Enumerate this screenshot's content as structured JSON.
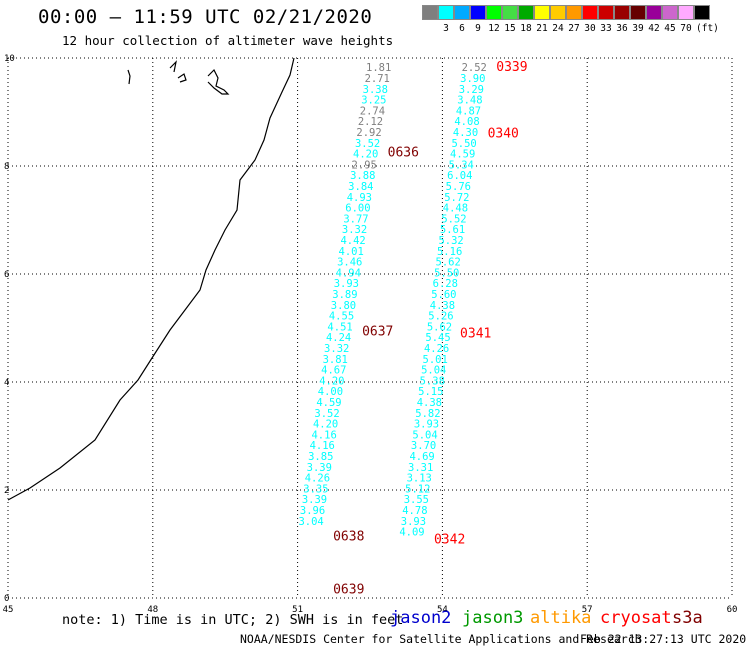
{
  "header": {
    "title": "00:00 – 11:59 UTC 02/21/2020",
    "subtitle": "12 hour collection of altimeter wave heights"
  },
  "colorbar": {
    "unit": "(ft)",
    "colors": [
      "#7f7f7f",
      "#00ffff",
      "#00aaff",
      "#0000ff",
      "#00ff00",
      "#44dd44",
      "#00aa00",
      "#ffff00",
      "#ffcc00",
      "#ff9900",
      "#ff0000",
      "#cc0000",
      "#990000",
      "#660000",
      "#990099",
      "#cc66cc",
      "#ffaaff",
      "#000000"
    ],
    "labels": [
      "3",
      "6",
      "9",
      "12",
      "15",
      "18",
      "21",
      "24",
      "27",
      "30",
      "33",
      "36",
      "39",
      "42",
      "45",
      "70"
    ]
  },
  "axes": {
    "x_ticks": [
      "45",
      "48",
      "51",
      "54",
      "57",
      "60"
    ],
    "y_ticks": [
      "0",
      "2",
      "4",
      "6",
      "8",
      "10"
    ]
  },
  "tracks": [
    {
      "times": [
        {
          "label": "0636",
          "y": 8.27
        },
        {
          "label": "0637",
          "y": 4.95
        },
        {
          "label": "0638",
          "y": 1.16
        },
        {
          "label": "0639",
          "y": 0.18
        }
      ],
      "points": [
        {
          "lon": 52.68,
          "lat": 9.83,
          "v": "1.81",
          "c": "#7f7f7f"
        },
        {
          "lon": 52.65,
          "lat": 9.63,
          "v": "2.71",
          "c": "#7f7f7f"
        },
        {
          "lon": 52.61,
          "lat": 9.43,
          "v": "3.38",
          "c": "#00ffff"
        },
        {
          "lon": 52.58,
          "lat": 9.23,
          "v": "3.25",
          "c": "#00ffff"
        },
        {
          "lon": 52.55,
          "lat": 9.03,
          "v": "2.74",
          "c": "#7f7f7f"
        },
        {
          "lon": 52.51,
          "lat": 8.83,
          "v": "2.12",
          "c": "#7f7f7f"
        },
        {
          "lon": 52.48,
          "lat": 8.63,
          "v": "2.92",
          "c": "#7f7f7f"
        },
        {
          "lon": 52.45,
          "lat": 8.43,
          "v": "3.52",
          "c": "#00ffff"
        },
        {
          "lon": 52.41,
          "lat": 8.23,
          "v": "4.20",
          "c": "#00ffff"
        },
        {
          "lon": 52.38,
          "lat": 8.03,
          "v": "2.95",
          "c": "#7f7f7f"
        },
        {
          "lon": 52.35,
          "lat": 7.83,
          "v": "3.88",
          "c": "#00ffff"
        },
        {
          "lon": 52.31,
          "lat": 7.63,
          "v": "3.84",
          "c": "#00ffff"
        },
        {
          "lon": 52.28,
          "lat": 7.43,
          "v": "4.93",
          "c": "#00ffff"
        },
        {
          "lon": 52.25,
          "lat": 7.23,
          "v": "6.00",
          "c": "#00ffff"
        },
        {
          "lon": 52.21,
          "lat": 7.03,
          "v": "3.77",
          "c": "#00ffff"
        },
        {
          "lon": 52.18,
          "lat": 6.83,
          "v": "3.32",
          "c": "#00ffff"
        },
        {
          "lon": 52.15,
          "lat": 6.63,
          "v": "4.42",
          "c": "#00ffff"
        },
        {
          "lon": 52.11,
          "lat": 6.43,
          "v": "4.01",
          "c": "#00ffff"
        },
        {
          "lon": 52.08,
          "lat": 6.23,
          "v": "3.46",
          "c": "#00ffff"
        },
        {
          "lon": 52.05,
          "lat": 6.03,
          "v": "4.94",
          "c": "#00ffff"
        },
        {
          "lon": 52.01,
          "lat": 5.83,
          "v": "3.93",
          "c": "#00ffff"
        },
        {
          "lon": 51.98,
          "lat": 5.63,
          "v": "3.89",
          "c": "#00ffff"
        },
        {
          "lon": 51.95,
          "lat": 5.43,
          "v": "3.80",
          "c": "#00ffff"
        },
        {
          "lon": 51.91,
          "lat": 5.23,
          "v": "4.55",
          "c": "#00ffff"
        },
        {
          "lon": 51.88,
          "lat": 5.03,
          "v": "4.51",
          "c": "#00ffff"
        },
        {
          "lon": 51.85,
          "lat": 4.83,
          "v": "4.24",
          "c": "#00ffff"
        },
        {
          "lon": 51.81,
          "lat": 4.63,
          "v": "3.32",
          "c": "#00ffff"
        },
        {
          "lon": 51.78,
          "lat": 4.43,
          "v": "3.81",
          "c": "#00ffff"
        },
        {
          "lon": 51.75,
          "lat": 4.23,
          "v": "4.67",
          "c": "#00ffff"
        },
        {
          "lon": 51.71,
          "lat": 4.03,
          "v": "4.20",
          "c": "#00ffff"
        },
        {
          "lon": 51.68,
          "lat": 3.83,
          "v": "4.00",
          "c": "#00ffff"
        },
        {
          "lon": 51.65,
          "lat": 3.63,
          "v": "4.59",
          "c": "#00ffff"
        },
        {
          "lon": 51.61,
          "lat": 3.43,
          "v": "3.52",
          "c": "#00ffff"
        },
        {
          "lon": 51.58,
          "lat": 3.23,
          "v": "4.20",
          "c": "#00ffff"
        },
        {
          "lon": 51.55,
          "lat": 3.03,
          "v": "4.16",
          "c": "#00ffff"
        },
        {
          "lon": 51.51,
          "lat": 2.83,
          "v": "4.16",
          "c": "#00ffff"
        },
        {
          "lon": 51.48,
          "lat": 2.63,
          "v": "3.85",
          "c": "#00ffff"
        },
        {
          "lon": 51.45,
          "lat": 2.43,
          "v": "3.39",
          "c": "#00ffff"
        },
        {
          "lon": 51.41,
          "lat": 2.23,
          "v": "4.26",
          "c": "#00ffff"
        },
        {
          "lon": 51.38,
          "lat": 2.03,
          "v": "3.35",
          "c": "#00ffff"
        },
        {
          "lon": 51.35,
          "lat": 1.83,
          "v": "3.39",
          "c": "#00ffff"
        },
        {
          "lon": 51.31,
          "lat": 1.63,
          "v": "3.96",
          "c": "#00ffff"
        },
        {
          "lon": 51.28,
          "lat": 1.43,
          "v": "3.04",
          "c": "#00ffff"
        }
      ]
    },
    {
      "times": [
        {
          "label": "0339",
          "y": 9.85
        },
        {
          "label": "0340",
          "y": 8.62
        },
        {
          "label": "0341",
          "y": 4.92
        },
        {
          "label": "0342",
          "y": 1.1
        }
      ],
      "points": [
        {
          "lon": 54.66,
          "lat": 9.83,
          "v": "2.52",
          "c": "#7f7f7f"
        },
        {
          "lon": 54.63,
          "lat": 9.63,
          "v": "3.90",
          "c": "#00ffff"
        },
        {
          "lon": 54.6,
          "lat": 9.43,
          "v": "3.29",
          "c": "#00ffff"
        },
        {
          "lon": 54.57,
          "lat": 9.23,
          "v": "3.48",
          "c": "#00ffff"
        },
        {
          "lon": 54.54,
          "lat": 9.03,
          "v": "4.87",
          "c": "#00ffff"
        },
        {
          "lon": 54.51,
          "lat": 8.83,
          "v": "4.08",
          "c": "#00ffff"
        },
        {
          "lon": 54.48,
          "lat": 8.63,
          "v": "4.30",
          "c": "#00ffff"
        },
        {
          "lon": 54.45,
          "lat": 8.43,
          "v": "5.50",
          "c": "#00ffff"
        },
        {
          "lon": 54.42,
          "lat": 8.23,
          "v": "4.59",
          "c": "#00ffff"
        },
        {
          "lon": 54.39,
          "lat": 8.03,
          "v": "5.34",
          "c": "#00ffff"
        },
        {
          "lon": 54.36,
          "lat": 7.83,
          "v": "6.04",
          "c": "#00ffff"
        },
        {
          "lon": 54.33,
          "lat": 7.63,
          "v": "5.76",
          "c": "#00ffff"
        },
        {
          "lon": 54.3,
          "lat": 7.43,
          "v": "5.72",
          "c": "#00ffff"
        },
        {
          "lon": 54.27,
          "lat": 7.23,
          "v": "4.48",
          "c": "#00ffff"
        },
        {
          "lon": 54.24,
          "lat": 7.03,
          "v": "5.52",
          "c": "#00ffff"
        },
        {
          "lon": 54.21,
          "lat": 6.83,
          "v": "5.61",
          "c": "#00ffff"
        },
        {
          "lon": 54.18,
          "lat": 6.63,
          "v": "5.32",
          "c": "#00ffff"
        },
        {
          "lon": 54.15,
          "lat": 6.43,
          "v": "5.16",
          "c": "#00ffff"
        },
        {
          "lon": 54.12,
          "lat": 6.23,
          "v": "5.62",
          "c": "#00ffff"
        },
        {
          "lon": 54.09,
          "lat": 6.03,
          "v": "5.50",
          "c": "#00ffff"
        },
        {
          "lon": 54.06,
          "lat": 5.83,
          "v": "6.28",
          "c": "#00ffff"
        },
        {
          "lon": 54.03,
          "lat": 5.63,
          "v": "5.60",
          "c": "#00ffff"
        },
        {
          "lon": 54.0,
          "lat": 5.43,
          "v": "4.38",
          "c": "#00ffff"
        },
        {
          "lon": 53.97,
          "lat": 5.23,
          "v": "5.26",
          "c": "#00ffff"
        },
        {
          "lon": 53.94,
          "lat": 5.03,
          "v": "5.62",
          "c": "#00ffff"
        },
        {
          "lon": 53.91,
          "lat": 4.83,
          "v": "5.45",
          "c": "#00ffff"
        },
        {
          "lon": 53.88,
          "lat": 4.63,
          "v": "4.26",
          "c": "#00ffff"
        },
        {
          "lon": 53.85,
          "lat": 4.43,
          "v": "5.01",
          "c": "#00ffff"
        },
        {
          "lon": 53.82,
          "lat": 4.23,
          "v": "5.04",
          "c": "#00ffff"
        },
        {
          "lon": 53.79,
          "lat": 4.03,
          "v": "5.38",
          "c": "#00ffff"
        },
        {
          "lon": 53.76,
          "lat": 3.83,
          "v": "5.15",
          "c": "#00ffff"
        },
        {
          "lon": 53.73,
          "lat": 3.63,
          "v": "4.38",
          "c": "#00ffff"
        },
        {
          "lon": 53.7,
          "lat": 3.43,
          "v": "5.82",
          "c": "#00ffff"
        },
        {
          "lon": 53.67,
          "lat": 3.23,
          "v": "3.93",
          "c": "#00ffff"
        },
        {
          "lon": 53.64,
          "lat": 3.03,
          "v": "5.04",
          "c": "#00ffff"
        },
        {
          "lon": 53.61,
          "lat": 2.83,
          "v": "3.70",
          "c": "#00ffff"
        },
        {
          "lon": 53.58,
          "lat": 2.63,
          "v": "4.69",
          "c": "#00ffff"
        },
        {
          "lon": 53.55,
          "lat": 2.43,
          "v": "3.31",
          "c": "#00ffff"
        },
        {
          "lon": 53.52,
          "lat": 2.23,
          "v": "3.13",
          "c": "#00ffff"
        },
        {
          "lon": 53.49,
          "lat": 2.03,
          "v": "5.12",
          "c": "#00ffff"
        },
        {
          "lon": 53.46,
          "lat": 1.83,
          "v": "3.55",
          "c": "#00ffff"
        },
        {
          "lon": 53.43,
          "lat": 1.63,
          "v": "4.78",
          "c": "#00ffff"
        },
        {
          "lon": 53.4,
          "lat": 1.43,
          "v": "3.93",
          "c": "#00ffff"
        },
        {
          "lon": 53.37,
          "lat": 1.23,
          "v": "4.09",
          "c": "#00ffff"
        }
      ]
    }
  ],
  "time_colors": {
    "track1": "#800000",
    "track2": "#ff0000"
  },
  "footer": {
    "note": "note: 1) Time is in UTC; 2) SWH is in feet",
    "missions": [
      {
        "label": "jason2",
        "color": "#0000cc"
      },
      {
        "label": "jason3",
        "color": "#009900"
      },
      {
        "label": "altika",
        "color": "#ff9900"
      },
      {
        "label": "cryosat",
        "color": "#ff0000"
      },
      {
        "label": "s3a",
        "color": "#800000"
      }
    ],
    "credit": "NOAA/NESDIS Center for Satellite Applications and Research",
    "timestamp": "Feb 22 13:27:13 UTC 2020"
  }
}
